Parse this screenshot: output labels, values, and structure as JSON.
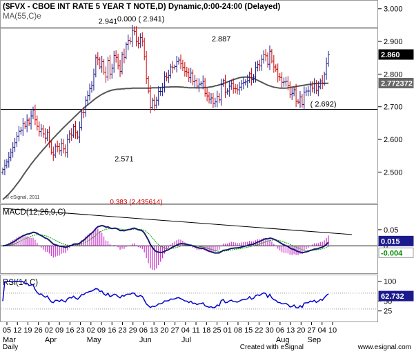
{
  "header": {
    "title": "($FVX - CBOE INT RATE 5 YEAR T NOTE,D) Dynamic,0:00-24:00 (Delayed)",
    "ma_label": "MA(55,C)e"
  },
  "footer": {
    "left": "Daily",
    "right": "Created with eSignal",
    "url": "www.esignal.com"
  },
  "colors": {
    "up": "#1a1a8c",
    "down": "#cc0000",
    "ma": "#555555",
    "macd_line": "#1a1a6e",
    "macd_signal": "#00aa00",
    "macd_hist": "#cc33cc",
    "rsi": "#0000cc",
    "last_price_bg": "#000000",
    "ma_value_bg": "#666666",
    "macd_value_bg": "#1a1a8c",
    "signal_value_bg": "#ffffff"
  },
  "chart_data": [
    {
      "type": "candlestick",
      "panel": "price",
      "ylim": [
        2.41,
        3.01
      ],
      "y_ticks": [
        2.5,
        2.6,
        2.7,
        2.8,
        2.9,
        3.0
      ],
      "y_tick_labels": [
        "2.500",
        "2.600",
        "2.700",
        "2.800",
        "2.900",
        "3.000"
      ],
      "horizontal_lines": [
        2.941,
        2.692
      ],
      "annotations": [
        {
          "text": "2.941",
          "x_index": 52,
          "y": 2.941
        },
        {
          "text": "0.000 ( 2.941)",
          "x_index": 60,
          "y": 2.941
        },
        {
          "text": "2.887",
          "x_index": 108,
          "y": 2.887
        },
        {
          "text": "( 2.692)",
          "x_index": 152,
          "y": 2.692
        },
        {
          "text": "2.571",
          "x_index": 60,
          "y": 2.571
        },
        {
          "text": "0.383 (2.435614)",
          "x_index": 66,
          "y": 2.435
        },
        {
          "text": "© eSignal, 2011",
          "x_index": 4,
          "y": 2.43
        }
      ],
      "last_price": "2.860",
      "ma_value": "2.772372",
      "trend_line": null
    },
    {
      "type": "macd",
      "panel": "macd",
      "title": "MACD(12,26,9,C)",
      "ylim": [
        -0.08,
        0.12
      ],
      "y_ticks": [
        0.05,
        0
      ],
      "y_tick_labels": [
        "0.05",
        "0"
      ],
      "macd_value": "0.015",
      "signal_value": "-0.004"
    },
    {
      "type": "line",
      "panel": "rsi",
      "title": "RSI(14,C)",
      "ylim": [
        0,
        110
      ],
      "y_ticks": [
        100,
        50,
        25
      ],
      "y_tick_labels": [
        "100",
        "50",
        "25"
      ],
      "last_value": "62.732"
    }
  ],
  "x_axis": {
    "day_labels": [
      "05",
      "12",
      "19",
      "26",
      "02",
      "09",
      "16",
      "23",
      "02",
      "09",
      "16",
      "23",
      "29",
      "06",
      "13",
      "20",
      "27",
      "04",
      "11",
      "18",
      "25",
      "01",
      "08",
      "15",
      "22",
      "30",
      "06",
      "13",
      "20",
      "27",
      "04",
      "10"
    ],
    "month_labels": [
      "Mar",
      "Apr",
      "May",
      "Jun",
      "Jul",
      "Aug",
      "Sep"
    ],
    "month_label_day_index": [
      0,
      4,
      8,
      13,
      17,
      26,
      29
    ]
  },
  "series": {
    "closes": [
      2.508,
      2.52,
      2.531,
      2.545,
      2.56,
      2.576,
      2.59,
      2.61,
      2.625,
      2.628,
      2.648,
      2.64,
      2.659,
      2.648,
      2.672,
      2.69,
      2.66,
      2.64,
      2.624,
      2.632,
      2.617,
      2.604,
      2.622,
      2.592,
      2.56,
      2.552,
      2.579,
      2.578,
      2.565,
      2.587,
      2.571,
      2.56,
      2.6,
      2.617,
      2.613,
      2.639,
      2.62,
      2.607,
      2.637,
      2.683,
      2.682,
      2.72,
      2.734,
      2.756,
      2.766,
      2.8,
      2.85,
      2.845,
      2.822,
      2.838,
      2.806,
      2.791,
      2.842,
      2.8,
      2.818,
      2.857,
      2.851,
      2.826,
      2.808,
      2.86,
      2.851,
      2.891,
      2.903,
      2.9,
      2.934,
      2.931,
      2.9,
      2.893,
      2.912,
      2.901,
      2.853,
      2.787,
      2.748,
      2.698,
      2.72,
      2.705,
      2.72,
      2.747,
      2.747,
      2.759,
      2.793,
      2.79,
      2.796,
      2.822,
      2.82,
      2.823,
      2.838,
      2.843,
      2.832,
      2.821,
      2.808,
      2.805,
      2.789,
      2.803,
      2.777,
      2.78,
      2.763,
      2.769,
      2.771,
      2.778,
      2.741,
      2.733,
      2.723,
      2.727,
      2.711,
      2.715,
      2.732,
      2.721,
      2.768,
      2.78,
      2.745,
      2.748,
      2.763,
      2.771,
      2.756,
      2.755,
      2.752,
      2.76,
      2.771,
      2.774,
      2.776,
      2.78,
      2.801,
      2.783,
      2.791,
      2.821,
      2.829,
      2.825,
      2.845,
      2.86,
      2.856,
      2.83,
      2.87,
      2.84,
      2.822,
      2.815,
      2.792,
      2.79,
      2.775,
      2.776,
      2.778,
      2.766,
      2.738,
      2.741,
      2.752,
      2.717,
      2.714,
      2.73,
      2.707,
      2.745,
      2.748,
      2.748,
      2.764,
      2.757,
      2.771,
      2.75,
      2.761,
      2.779,
      2.772,
      2.8,
      2.833,
      2.86
    ],
    "ma": [
      2.416,
      2.421,
      2.427,
      2.433,
      2.44,
      2.447,
      2.455,
      2.463,
      2.471,
      2.48,
      2.489,
      2.498,
      2.507,
      2.515,
      2.524,
      2.532,
      2.54,
      2.547,
      2.555,
      2.562,
      2.569,
      2.576,
      2.583,
      2.59,
      2.597,
      2.604,
      2.61,
      2.617,
      2.623,
      2.63,
      2.636,
      2.642,
      2.648,
      2.654,
      2.66,
      2.666,
      2.672,
      2.678,
      2.684,
      2.69,
      2.695,
      2.701,
      2.706,
      2.711,
      2.716,
      2.721,
      2.726,
      2.73,
      2.734,
      2.738,
      2.741,
      2.744,
      2.747,
      2.749,
      2.751,
      2.752,
      2.753,
      2.754,
      2.754,
      2.755,
      2.755,
      2.756,
      2.756,
      2.756,
      2.757,
      2.757,
      2.757,
      2.757,
      2.757,
      2.757,
      2.757,
      2.757,
      2.757,
      2.757,
      2.758,
      2.758,
      2.758,
      2.758,
      2.759,
      2.759,
      2.76,
      2.76,
      2.76,
      2.761,
      2.761,
      2.761,
      2.761,
      2.761,
      2.76,
      2.76,
      2.759,
      2.759,
      2.758,
      2.758,
      2.758,
      2.758,
      2.758,
      2.758,
      2.758,
      2.758,
      2.759,
      2.759,
      2.76,
      2.761,
      2.762,
      2.764,
      2.765,
      2.767,
      2.769,
      2.771,
      2.773,
      2.776,
      2.778,
      2.781,
      2.783,
      2.785,
      2.787,
      2.789,
      2.79,
      2.791,
      2.791,
      2.791,
      2.79,
      2.789,
      2.787,
      2.784,
      2.781,
      2.778,
      2.775,
      2.772,
      2.769,
      2.766,
      2.764,
      2.762,
      2.76,
      2.759,
      2.758,
      2.757,
      2.757,
      2.757,
      2.757,
      2.758,
      2.759,
      2.76,
      2.761,
      2.762,
      2.763,
      2.764,
      2.765,
      2.766,
      2.767,
      2.768,
      2.769,
      2.77,
      2.771,
      2.771,
      2.772,
      2.772,
      2.772,
      2.772,
      2.772,
      2.772
    ]
  }
}
